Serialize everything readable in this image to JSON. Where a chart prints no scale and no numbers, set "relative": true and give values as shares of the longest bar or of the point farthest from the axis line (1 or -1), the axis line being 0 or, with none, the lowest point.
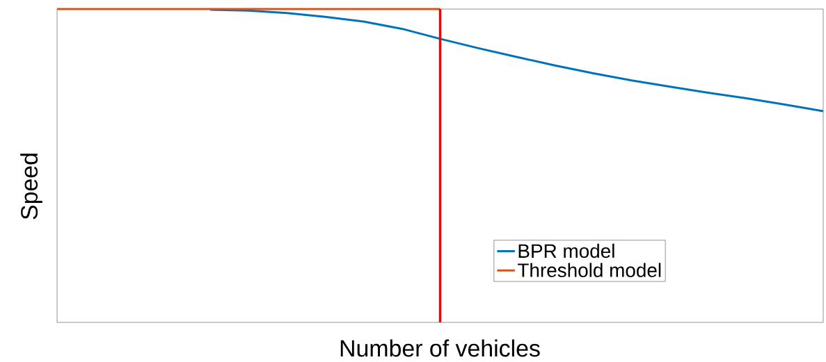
{
  "chart_data": {
    "type": "line",
    "relative": true,
    "xlabel": "Number of vehicles",
    "ylabel": "Speed",
    "legend": "bottom right",
    "categories": [
      null,
      null,
      null,
      null,
      null,
      null,
      null,
      null,
      null,
      null,
      null,
      null,
      null,
      null,
      null,
      null,
      null,
      null,
      null,
      null,
      null
    ],
    "series": [
      {
        "name": "BPR model",
        "color": "#0072bd",
        "values": [
          null,
          null,
          null,
          null,
          0.998,
          0.995,
          0.987,
          0.975,
          0.96,
          0.937,
          0.905,
          0.875,
          0.847,
          0.82,
          0.795,
          0.772,
          0.752,
          0.733,
          0.715,
          0.695,
          0.674
        ]
      },
      {
        "name": "Threshold model",
        "color": "#d95319",
        "values": [
          1.0,
          1.0,
          1.0,
          1.0,
          1.0,
          1.0,
          1.0,
          1.0,
          1.0,
          1.0,
          1.0,
          null,
          null,
          null,
          null,
          null,
          null,
          null,
          null,
          null,
          null
        ]
      }
    ]
  }
}
